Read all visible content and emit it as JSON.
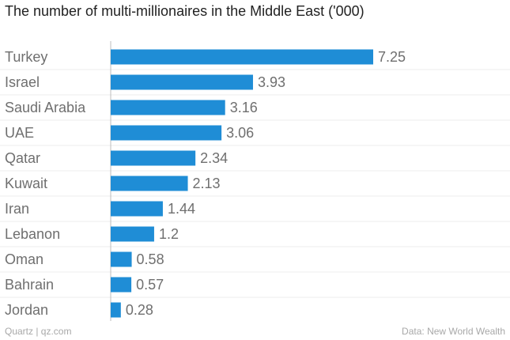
{
  "chart_data": {
    "type": "bar",
    "orientation": "horizontal",
    "title": "The number of multi-millionaires in the Middle East ('000)",
    "categories": [
      "Turkey",
      "Israel",
      "Saudi Arabia",
      "UAE",
      "Qatar",
      "Kuwait",
      "Iran",
      "Lebanon",
      "Oman",
      "Bahrain",
      "Jordan"
    ],
    "values": [
      7.25,
      3.93,
      3.16,
      3.06,
      2.34,
      2.13,
      1.44,
      1.2,
      0.58,
      0.57,
      0.28
    ],
    "value_labels": [
      "7.25",
      "3.93",
      "3.16",
      "3.06",
      "2.34",
      "2.13",
      "1.44",
      "1.2",
      "0.58",
      "0.57",
      "0.28"
    ],
    "xlim": [
      0,
      7.25
    ],
    "grid": "horizontal",
    "bar_color": "#1f8dd6"
  },
  "footer": {
    "credit": "Quartz | qz.com",
    "source": "Data: New World Wealth"
  }
}
